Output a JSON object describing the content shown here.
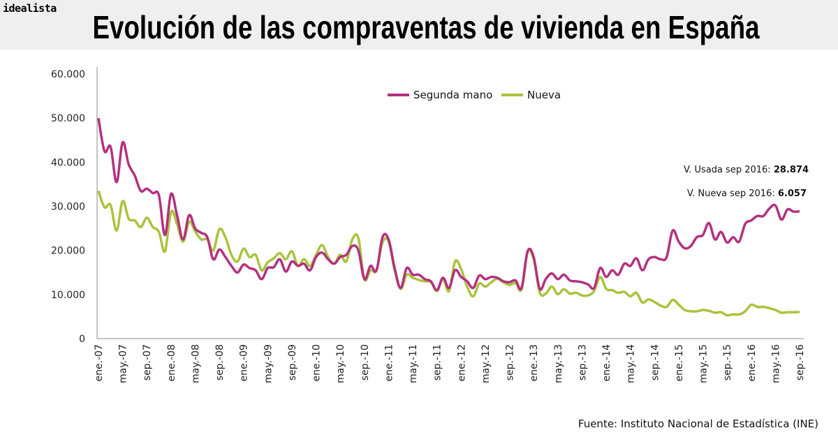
{
  "brand": "idealista",
  "title": "Evolución de las compraventas de vivienda en España",
  "source": "Fuente: Instituto Nacional de Estadística (INE)",
  "chart_data": {
    "type": "line",
    "title": "Evolución de las compraventas de vivienda en España",
    "xlabel": "",
    "ylabel": "",
    "ylim": [
      0,
      60000
    ],
    "yticks": [
      "0",
      "10.000",
      "20.000",
      "30.000",
      "40.000",
      "50.000",
      "60.000"
    ],
    "ytick_values": [
      0,
      10000,
      20000,
      30000,
      40000,
      50000,
      60000
    ],
    "x_start": "ene.-07",
    "x_end": "sep.-16",
    "x_frequency": "monthly",
    "xtick_labels": [
      "ene.-07",
      "may.-07",
      "sep.-07",
      "ene.-08",
      "may.-08",
      "sep.-08",
      "ene.-09",
      "may.-09",
      "sep.-09",
      "ene.-10",
      "may.-10",
      "sep.-10",
      "ene.-11",
      "may.-11",
      "sep.-11",
      "ene.-12",
      "may.-12",
      "sep.-12",
      "ene.-13",
      "may.-13",
      "sep.-13",
      "ene.-14",
      "may.-14",
      "sep.-14",
      "ene.-15",
      "may.-15",
      "sep.-15",
      "ene.-16",
      "may.-16",
      "sep.-16"
    ],
    "grid": false,
    "legend_position": "top-center",
    "series": [
      {
        "name": "Segunda mano",
        "color": "#b5307f",
        "values": [
          50000,
          42500,
          43500,
          35500,
          44500,
          39500,
          37000,
          33500,
          34000,
          33000,
          32500,
          23500,
          32800,
          28000,
          22500,
          28000,
          25000,
          24000,
          23000,
          18000,
          20200,
          18500,
          16500,
          15000,
          16800,
          16000,
          15500,
          13500,
          16000,
          16200,
          18000,
          15200,
          17500,
          16500,
          17000,
          15500,
          18500,
          19500,
          18000,
          17000,
          18500,
          19000,
          21000,
          20000,
          13500,
          16500,
          15500,
          23000,
          22500,
          16000,
          11500,
          16000,
          14500,
          14500,
          13500,
          13000,
          11000,
          13800,
          11500,
          15500,
          14000,
          13000,
          11500,
          14300,
          13500,
          14000,
          13800,
          13000,
          12800,
          13200,
          11500,
          19800,
          18500,
          11300,
          13500,
          14800,
          13500,
          14500,
          13200,
          13000,
          12800,
          12300,
          11500,
          16000,
          14000,
          15500,
          14500,
          17000,
          16500,
          18200,
          15500,
          18000,
          18500,
          18000,
          18500,
          24500,
          22000,
          20500,
          21000,
          23000,
          23500,
          26200,
          22500,
          24200,
          21800,
          23000,
          22000,
          26000,
          26800,
          27800,
          27800,
          29500,
          30200,
          27000,
          29300,
          28800,
          28874
        ]
      },
      {
        "name": "Nueva",
        "color": "#a8c43c",
        "values": [
          33500,
          29800,
          30300,
          24500,
          31200,
          27200,
          26800,
          25300,
          27400,
          25300,
          24200,
          19800,
          28700,
          26000,
          22000,
          26500,
          24300,
          22500,
          22500,
          20000,
          24800,
          23000,
          19000,
          17500,
          20400,
          18500,
          19000,
          15500,
          17300,
          18200,
          19400,
          18000,
          19800,
          16500,
          18000,
          16500,
          19000,
          21200,
          18500,
          17000,
          19000,
          17500,
          22500,
          22800,
          13500,
          15500,
          15500,
          21800,
          22000,
          15500,
          11300,
          14500,
          13800,
          13300,
          13000,
          12800,
          10800,
          13500,
          10800,
          17500,
          15800,
          11800,
          9600,
          12500,
          11800,
          12800,
          13600,
          12800,
          12200,
          12600,
          11200,
          19600,
          18000,
          10500,
          10200,
          11800,
          10100,
          11200,
          10200,
          10400,
          9800,
          9800,
          10800,
          14000,
          11300,
          11000,
          10400,
          10600,
          9600,
          10400,
          8200,
          8900,
          8300,
          7500,
          7200,
          8800,
          7700,
          6500,
          6200,
          6200,
          6500,
          6300,
          5900,
          6000,
          5300,
          5500,
          5500,
          6200,
          7700,
          7200,
          7200,
          6900,
          6500,
          5900,
          6000,
          6000,
          6057
        ]
      }
    ],
    "annotations": [
      {
        "label": "V. Usada sep 2016:",
        "value": "28.874"
      },
      {
        "label": "V. Nueva sep 2016:",
        "value": "6.057"
      }
    ]
  }
}
